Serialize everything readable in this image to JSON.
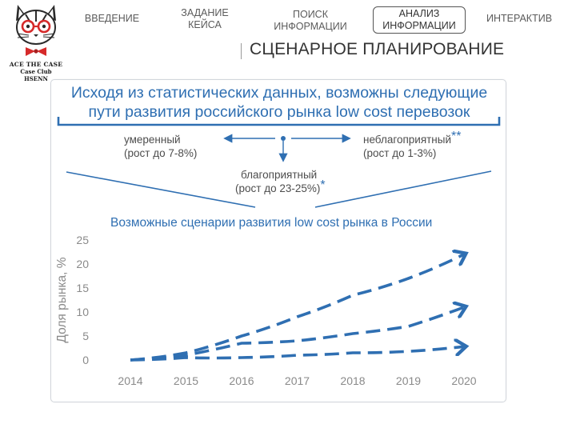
{
  "logo": {
    "line1": "ACE THE CASE",
    "line2": "Case Club",
    "line3": "HSENN"
  },
  "nav": {
    "intro": "ВВЕДЕНИЕ",
    "task": [
      "ЗАДАНИЕ",
      "КЕЙСА"
    ],
    "search": [
      "ПОИСК",
      "ИНФОРМАЦИИ"
    ],
    "analysis": [
      "АНАЛИЗ",
      "ИНФОРМАЦИИ"
    ],
    "interactive": "ИНТЕРАКТИВ"
  },
  "section_title": "СЦЕНАРНОЕ ПЛАНИРОВАНИЕ",
  "slide": {
    "title": [
      "Исходя из статистических данных, возможны следующие",
      "пути развития российского рынка low cost перевозок"
    ],
    "options": {
      "moderate": [
        "умеренный",
        "(рост до 7-8%)"
      ],
      "unfavorable": [
        "неблагоприятный",
        "(рост до 1-3%)"
      ],
      "unfavorable_mark": "**",
      "favorable": [
        "благоприятный",
        "(рост до 23-25%)"
      ],
      "favorable_mark": "*"
    },
    "chart_title": "Возможные сценарии развития low cost рынка в России"
  },
  "colors": {
    "accent": "#2f6fb2",
    "text": "#4a4a4a",
    "axis": "#8a8a8a"
  },
  "chart_data": {
    "type": "line",
    "title": "Возможные сценарии развития low cost рынка в России",
    "xlabel": "",
    "ylabel": "Доля рынка, %",
    "x": [
      "2014",
      "2015",
      "2016",
      "2017",
      "2018",
      "2019",
      "2020"
    ],
    "ylim": [
      0,
      25
    ],
    "yticks": [
      0,
      5,
      10,
      15,
      20,
      25
    ],
    "grid": false,
    "line_style": "dashed with arrowheads",
    "series": [
      {
        "values": [
          0,
          1.5,
          5,
          9,
          13.5,
          17,
          22
        ]
      },
      {
        "values": [
          0,
          1,
          3.5,
          4,
          5.5,
          7,
          11
        ]
      },
      {
        "values": [
          0,
          0.5,
          0.5,
          1,
          1.5,
          1.8,
          2.8
        ]
      }
    ]
  }
}
